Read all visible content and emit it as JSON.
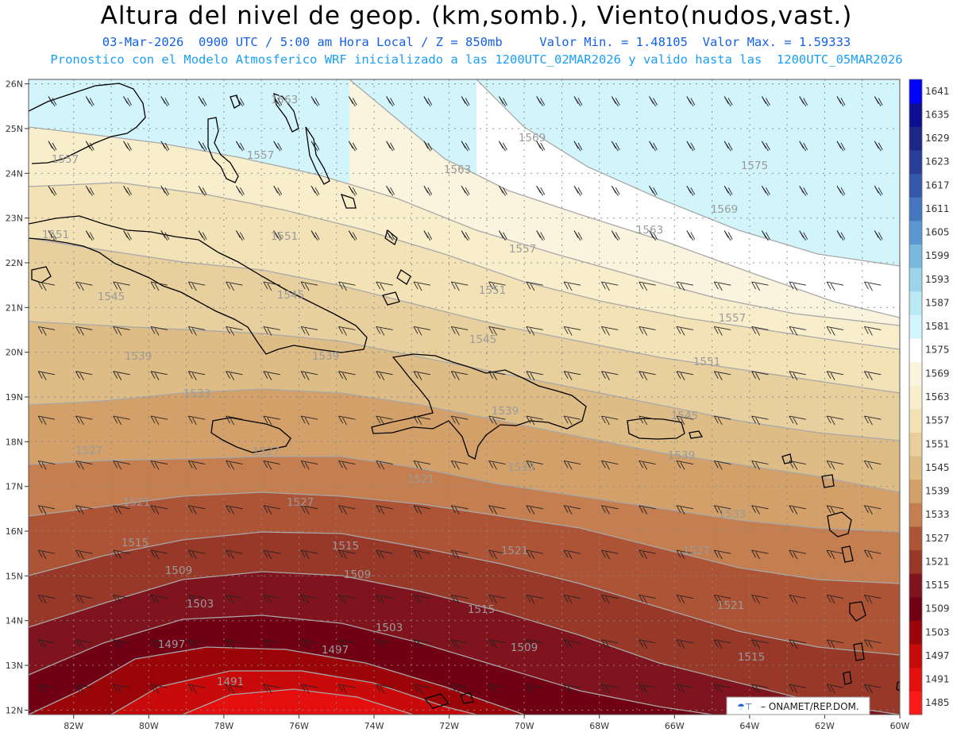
{
  "header": {
    "title": "Altura del nivel de geop. (km,somb.), Viento(nudos,vast.)",
    "line1": "03-Mar-2026  0900 UTC / 5:00 am Hora Local / Z = 850mb     Valor Min. = 1.48105  Valor Max. = 1.59333",
    "line2": "Pronostico con el Modelo Atmosferico WRF inicializado a las 1200UTC_02MAR2026 y valido hasta las  1200UTC_05MAR2026"
  },
  "chart_data": {
    "type": "heatmap",
    "x_ticks": [
      "82W",
      "80W",
      "78W",
      "76W",
      "74W",
      "72W",
      "70W",
      "68W",
      "66W",
      "64W",
      "62W",
      "60W"
    ],
    "y_ticks": [
      "26N",
      "25N",
      "24N",
      "23N",
      "22N",
      "21N",
      "20N",
      "19N",
      "18N",
      "17N",
      "16N",
      "15N",
      "14N",
      "13N",
      "12N"
    ],
    "xlim": [
      -83.2,
      -60
    ],
    "ylim": [
      11.9,
      26.1
    ],
    "colorbar": {
      "levels": [
        "1485",
        "1491",
        "1497",
        "1503",
        "1509",
        "1515",
        "1521",
        "1527",
        "1533",
        "1539",
        "1545",
        "1551",
        "1557",
        "1563",
        "1569",
        "1575",
        "1581",
        "1587",
        "1593",
        "1599",
        "1605",
        "1611",
        "1617",
        "1623",
        "1629",
        "1635",
        "1641"
      ],
      "colors": [
        "#ff1a1a",
        "#e60f0f",
        "#c80a0a",
        "#9b0509",
        "#720014",
        "#80141e",
        "#983828",
        "#ae5436",
        "#c47e50",
        "#d2a068",
        "#debc86",
        "#e8cf9e",
        "#f2e2b6",
        "#f9eecc",
        "#faf3de",
        "#ffffff",
        "#d2f4fb",
        "#bae8f4",
        "#9cd4ec",
        "#7ab9df",
        "#5b98d0",
        "#4577c0",
        "#3558ac",
        "#283e98",
        "#1c2686",
        "#0e0e92",
        "#0000ff"
      ]
    },
    "contour_labels": [
      "1563",
      "1557",
      "1557",
      "1569",
      "1563",
      "1575",
      "1569",
      "1563",
      "1551",
      "1551",
      "1557",
      "1545",
      "1545",
      "1551",
      "1557",
      "1539",
      "1539",
      "1545",
      "1551",
      "1533",
      "1539",
      "1545",
      "1527",
      "1527",
      "1539",
      "1533",
      "1521",
      "1521",
      "1527",
      "1533",
      "1515",
      "1515",
      "1521",
      "1527",
      "1509",
      "1509",
      "1515",
      "1521",
      "1503",
      "1503",
      "1509",
      "1515",
      "1497",
      "1497",
      "1491"
    ],
    "credit": "ONAMET/REP.DOM."
  }
}
